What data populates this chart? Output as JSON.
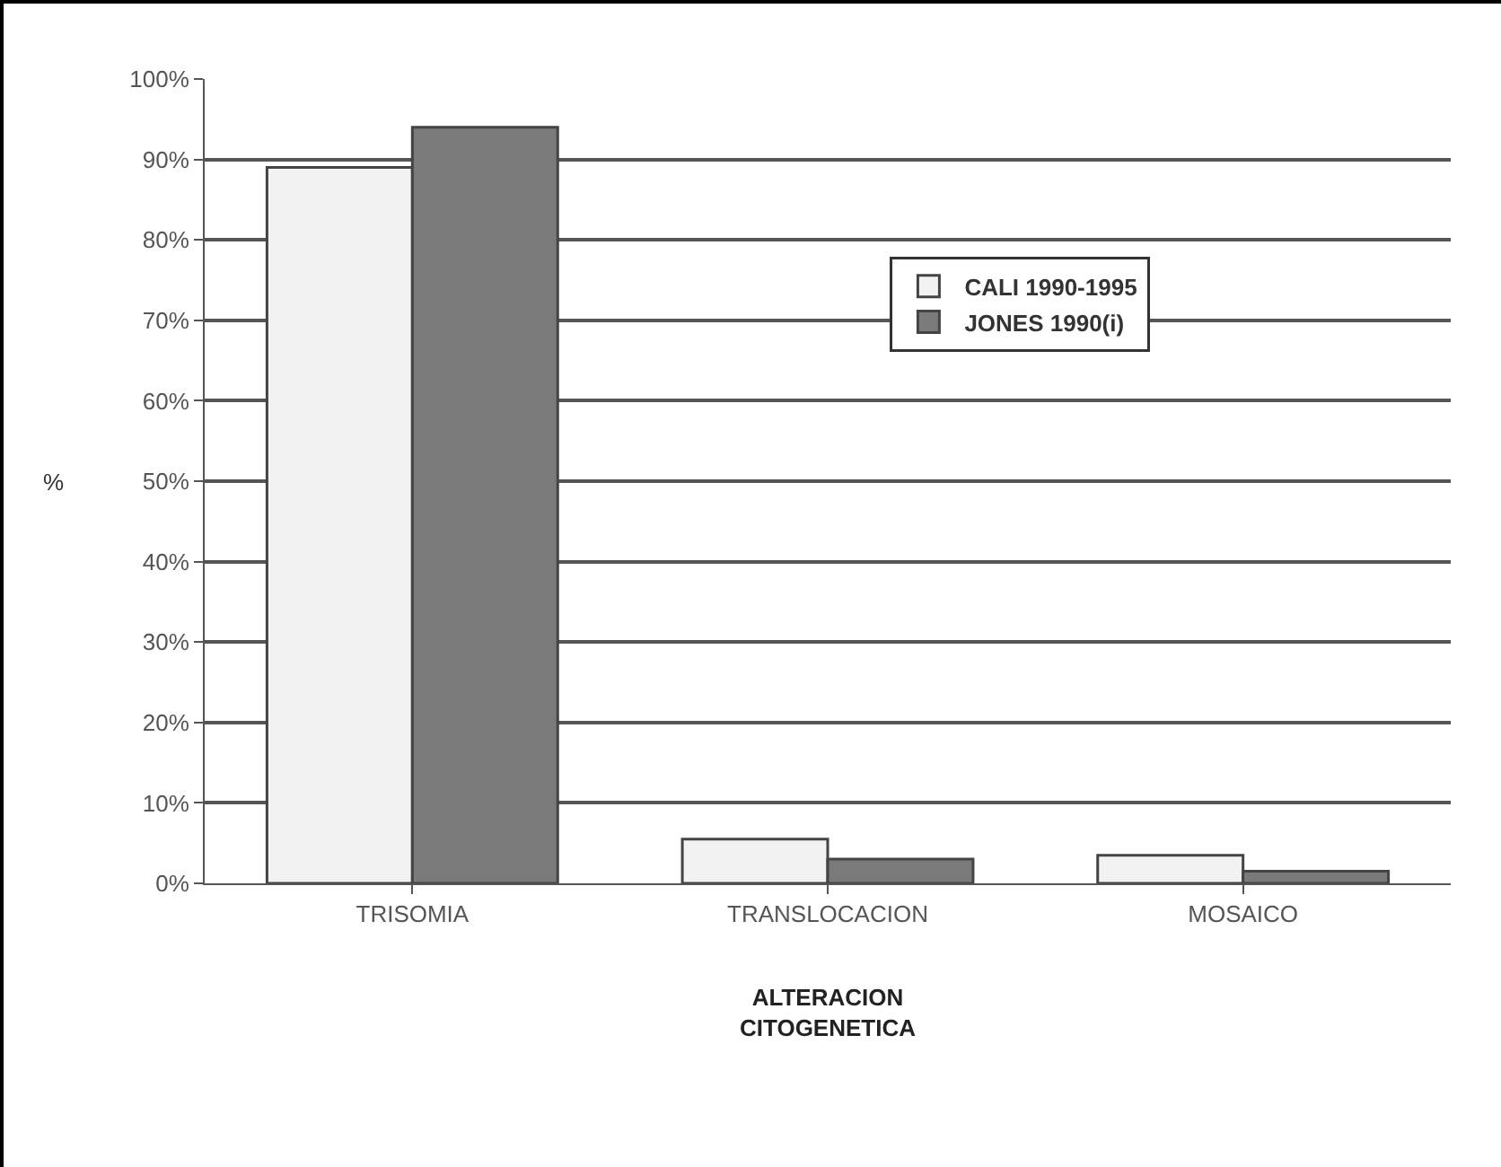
{
  "chart_data": {
    "type": "bar",
    "xlabel": "ALTERACION\nCITOGENETICA",
    "ylabel": "%",
    "categories": [
      "TRISOMIA",
      "TRANSLOCACION",
      "MOSAICO"
    ],
    "series": [
      {
        "name": "CALI 1990-1995",
        "color": "#f2f2f2",
        "values": [
          89,
          5.5,
          3.5
        ]
      },
      {
        "name": "JONES 1990(i)",
        "color": "#7a7a7a",
        "values": [
          94,
          3,
          1.5
        ]
      }
    ],
    "ylim": [
      0,
      100
    ],
    "yticks": [
      {
        "value": 0,
        "label": "0%"
      },
      {
        "value": 10,
        "label": "10%"
      },
      {
        "value": 20,
        "label": "20%"
      },
      {
        "value": 30,
        "label": "30%"
      },
      {
        "value": 40,
        "label": "40%"
      },
      {
        "value": 50,
        "label": "50%"
      },
      {
        "value": 60,
        "label": "60%"
      },
      {
        "value": 70,
        "label": "70%"
      },
      {
        "value": 80,
        "label": "80%"
      },
      {
        "value": 90,
        "label": "90%"
      },
      {
        "value": 100,
        "label": "100%"
      }
    ],
    "grid": "y",
    "legend": "right"
  }
}
